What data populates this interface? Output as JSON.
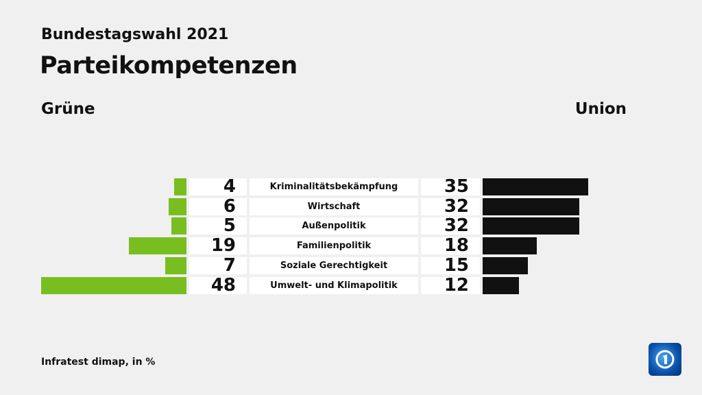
{
  "header": {
    "supertitle": "Bundestagswahl 2021",
    "title": "Parteikompetenzen"
  },
  "legend": {
    "left": "Grüne",
    "right": "Union"
  },
  "source": "Infratest dimap, in %",
  "colors": {
    "left": "#78be20",
    "right": "#111111"
  },
  "logo": "tagesschau-ard-logo",
  "chart_data": {
    "type": "bar",
    "title": "Parteikompetenzen",
    "categories": [
      "Kriminalitätsbekämpfung",
      "Wirtschaft",
      "Außenpolitik",
      "Familienpolitik",
      "Soziale Gerechtigkeit",
      "Umwelt- und Klimapolitik"
    ],
    "series": [
      {
        "name": "Grüne",
        "values": [
          4,
          6,
          5,
          19,
          7,
          48
        ]
      },
      {
        "name": "Union",
        "values": [
          35,
          32,
          32,
          18,
          15,
          12
        ]
      }
    ],
    "unit": "%"
  }
}
